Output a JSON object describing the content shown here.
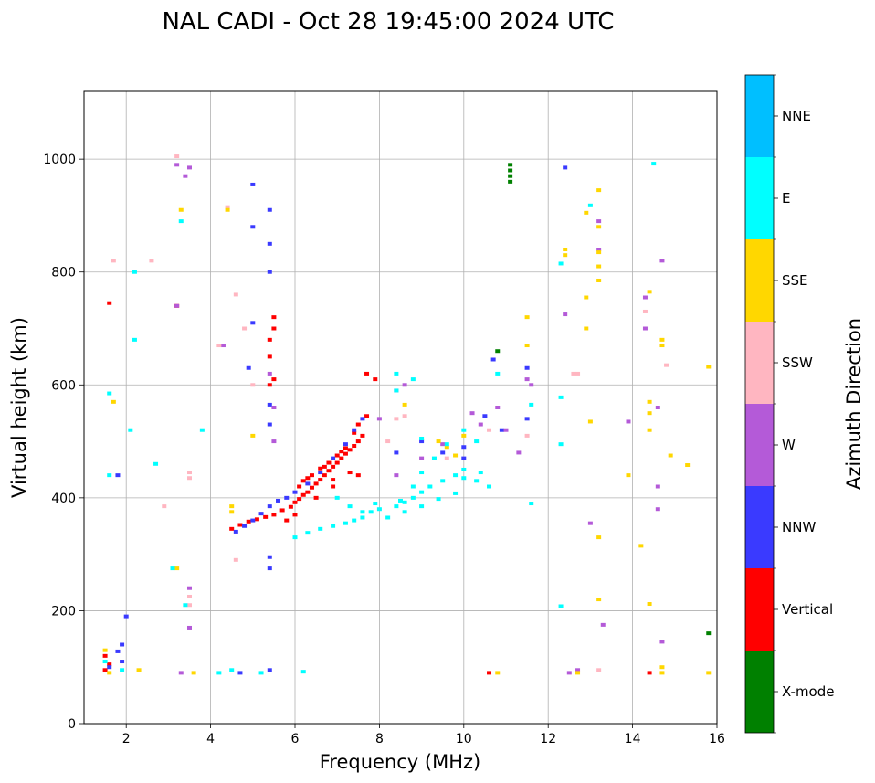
{
  "chart_data": {
    "type": "scatter",
    "title": "NAL CADI - Oct 28 19:45:00 2024 UTC",
    "xlabel": "Frequency (MHz)",
    "ylabel": "Virtual height (km)",
    "xlim": [
      1,
      16
    ],
    "ylim": [
      0,
      1120
    ],
    "xticks": [
      2,
      4,
      6,
      8,
      10,
      12,
      14,
      16
    ],
    "yticks": [
      0,
      200,
      400,
      600,
      800,
      1000
    ],
    "grid": true,
    "colorbar": {
      "title": "Azimuth Direction",
      "categories": [
        {
          "name": "X-mode",
          "color": "#008000"
        },
        {
          "name": "Vertical",
          "color": "#ff0000"
        },
        {
          "name": "NNW",
          "color": "#3a3aff"
        },
        {
          "name": "W",
          "color": "#b45ad8"
        },
        {
          "name": "SSW",
          "color": "#ffb6c1"
        },
        {
          "name": "SSE",
          "color": "#ffd700"
        },
        {
          "name": "E",
          "color": "#00ffff"
        },
        {
          "name": "NNE",
          "color": "#00bfff"
        }
      ]
    },
    "series": [
      {
        "name": "Vertical",
        "color": "#ff0000",
        "points": [
          [
            4.5,
            345
          ],
          [
            4.7,
            352
          ],
          [
            4.9,
            358
          ],
          [
            5.1,
            362
          ],
          [
            5.3,
            366
          ],
          [
            5.5,
            370
          ],
          [
            5.7,
            378
          ],
          [
            5.9,
            384
          ],
          [
            6.0,
            392
          ],
          [
            6.1,
            398
          ],
          [
            6.2,
            405
          ],
          [
            6.3,
            410
          ],
          [
            6.4,
            418
          ],
          [
            6.5,
            425
          ],
          [
            6.6,
            432
          ],
          [
            6.7,
            440
          ],
          [
            6.8,
            448
          ],
          [
            6.9,
            455
          ],
          [
            7.0,
            462
          ],
          [
            7.1,
            470
          ],
          [
            7.2,
            478
          ],
          [
            7.3,
            485
          ],
          [
            7.4,
            492
          ],
          [
            7.5,
            500
          ],
          [
            7.6,
            510
          ],
          [
            6.2,
            430
          ],
          [
            6.4,
            440
          ],
          [
            6.6,
            452
          ],
          [
            6.8,
            462
          ],
          [
            7.0,
            475
          ],
          [
            7.2,
            488
          ],
          [
            6.5,
            400
          ],
          [
            6.9,
            420
          ],
          [
            7.3,
            445
          ],
          [
            6.1,
            420
          ],
          [
            6.3,
            435
          ],
          [
            6.7,
            455
          ],
          [
            7.1,
            482
          ],
          [
            7.5,
            530
          ],
          [
            7.7,
            545
          ],
          [
            7.7,
            620
          ],
          [
            7.9,
            610
          ],
          [
            5.4,
            600
          ],
          [
            5.5,
            610
          ],
          [
            5.5,
            700
          ],
          [
            5.5,
            720
          ],
          [
            5.4,
            650
          ],
          [
            5.4,
            680
          ],
          [
            1.6,
            745
          ],
          [
            3.2,
            740
          ],
          [
            1.5,
            120
          ],
          [
            1.6,
            105
          ],
          [
            1.5,
            95
          ],
          [
            10.6,
            90
          ],
          [
            14.4,
            90
          ],
          [
            7.5,
            440
          ],
          [
            6.0,
            370
          ],
          [
            5.8,
            360
          ],
          [
            6.9,
            432
          ],
          [
            7.4,
            515
          ]
        ]
      },
      {
        "name": "NNW",
        "color": "#3a3aff",
        "points": [
          [
            4.6,
            340
          ],
          [
            4.8,
            350
          ],
          [
            5.0,
            360
          ],
          [
            5.2,
            372
          ],
          [
            5.4,
            385
          ],
          [
            5.6,
            395
          ],
          [
            5.8,
            400
          ],
          [
            6.0,
            410
          ],
          [
            6.3,
            425
          ],
          [
            6.6,
            445
          ],
          [
            6.9,
            470
          ],
          [
            7.2,
            495
          ],
          [
            7.4,
            520
          ],
          [
            7.6,
            540
          ],
          [
            5.4,
            295
          ],
          [
            5.4,
            275
          ],
          [
            5.0,
            955
          ],
          [
            5.0,
            880
          ],
          [
            5.4,
            910
          ],
          [
            5.4,
            850
          ],
          [
            5.4,
            800
          ],
          [
            5.0,
            710
          ],
          [
            4.9,
            630
          ],
          [
            5.4,
            565
          ],
          [
            5.4,
            530
          ],
          [
            1.9,
            140
          ],
          [
            1.8,
            128
          ],
          [
            1.9,
            110
          ],
          [
            1.6,
            100
          ],
          [
            2.0,
            190
          ],
          [
            10.5,
            545
          ],
          [
            10.9,
            520
          ],
          [
            11.5,
            540
          ],
          [
            11.5,
            630
          ],
          [
            12.4,
            985
          ],
          [
            10.7,
            645
          ],
          [
            8.4,
            480
          ],
          [
            9.0,
            500
          ],
          [
            9.5,
            480
          ],
          [
            10.0,
            490
          ],
          [
            10.0,
            470
          ],
          [
            5.4,
            95
          ],
          [
            4.7,
            90
          ],
          [
            1.8,
            440
          ]
        ]
      },
      {
        "name": "W",
        "color": "#b45ad8",
        "points": [
          [
            3.2,
            990
          ],
          [
            3.5,
            985
          ],
          [
            3.4,
            970
          ],
          [
            3.2,
            740
          ],
          [
            4.3,
            670
          ],
          [
            5.4,
            620
          ],
          [
            5.5,
            560
          ],
          [
            5.5,
            500
          ],
          [
            8.0,
            540
          ],
          [
            8.4,
            590
          ],
          [
            8.6,
            600
          ],
          [
            9.5,
            495
          ],
          [
            10.2,
            550
          ],
          [
            10.4,
            530
          ],
          [
            10.8,
            560
          ],
          [
            11.0,
            520
          ],
          [
            11.3,
            480
          ],
          [
            11.5,
            610
          ],
          [
            12.4,
            725
          ],
          [
            13.2,
            890
          ],
          [
            13.2,
            840
          ],
          [
            14.3,
            755
          ],
          [
            14.3,
            700
          ],
          [
            14.6,
            560
          ],
          [
            14.6,
            420
          ],
          [
            14.6,
            380
          ],
          [
            14.7,
            145
          ],
          [
            13.3,
            175
          ],
          [
            12.7,
            95
          ],
          [
            13.0,
            355
          ],
          [
            13.9,
            535
          ],
          [
            8.4,
            440
          ],
          [
            9.0,
            470
          ],
          [
            3.5,
            240
          ],
          [
            3.5,
            170
          ],
          [
            3.3,
            90
          ],
          [
            11.6,
            600
          ],
          [
            14.7,
            820
          ],
          [
            12.5,
            90
          ]
        ]
      },
      {
        "name": "SSW",
        "color": "#ffb6c1",
        "points": [
          [
            2.6,
            820
          ],
          [
            3.2,
            1005
          ],
          [
            3.5,
            445
          ],
          [
            3.5,
            435
          ],
          [
            4.2,
            670
          ],
          [
            4.4,
            915
          ],
          [
            4.6,
            760
          ],
          [
            4.8,
            700
          ],
          [
            5.0,
            600
          ],
          [
            8.4,
            540
          ],
          [
            8.6,
            545
          ],
          [
            12.7,
            620
          ],
          [
            12.6,
            620
          ],
          [
            13.2,
            95
          ],
          [
            14.8,
            635
          ],
          [
            3.5,
            225
          ],
          [
            3.5,
            210
          ],
          [
            2.9,
            385
          ],
          [
            1.7,
            820
          ],
          [
            8.2,
            500
          ],
          [
            9.6,
            470
          ],
          [
            10.6,
            520
          ],
          [
            11.5,
            510
          ],
          [
            14.3,
            730
          ],
          [
            4.6,
            290
          ]
        ]
      },
      {
        "name": "SSE",
        "color": "#ffd700",
        "points": [
          [
            1.7,
            570
          ],
          [
            3.3,
            910
          ],
          [
            4.5,
            385
          ],
          [
            4.5,
            375
          ],
          [
            4.4,
            910
          ],
          [
            5.0,
            510
          ],
          [
            8.6,
            565
          ],
          [
            9.4,
            500
          ],
          [
            9.6,
            490
          ],
          [
            10.0,
            510
          ],
          [
            10.8,
            90
          ],
          [
            11.5,
            720
          ],
          [
            11.5,
            670
          ],
          [
            12.4,
            840
          ],
          [
            12.4,
            830
          ],
          [
            12.9,
            755
          ],
          [
            12.9,
            700
          ],
          [
            12.9,
            905
          ],
          [
            13.2,
            945
          ],
          [
            13.2,
            880
          ],
          [
            13.2,
            810
          ],
          [
            13.2,
            785
          ],
          [
            13.0,
            535
          ],
          [
            13.2,
            330
          ],
          [
            13.2,
            220
          ],
          [
            13.9,
            440
          ],
          [
            14.2,
            315
          ],
          [
            14.4,
            570
          ],
          [
            14.4,
            550
          ],
          [
            14.4,
            520
          ],
          [
            14.4,
            765
          ],
          [
            14.7,
            680
          ],
          [
            14.7,
            670
          ],
          [
            14.9,
            475
          ],
          [
            15.3,
            458
          ],
          [
            15.8,
            632
          ],
          [
            14.4,
            212
          ],
          [
            14.7,
            100
          ],
          [
            14.7,
            90
          ],
          [
            12.7,
            90
          ],
          [
            15.8,
            90
          ],
          [
            3.6,
            90
          ],
          [
            1.5,
            130
          ],
          [
            1.6,
            90
          ],
          [
            2.3,
            95
          ],
          [
            3.2,
            275
          ],
          [
            13.2,
            835
          ],
          [
            9.8,
            475
          ]
        ]
      },
      {
        "name": "E",
        "color": "#00ffff",
        "points": [
          [
            6.0,
            330
          ],
          [
            6.3,
            338
          ],
          [
            6.6,
            345
          ],
          [
            6.9,
            350
          ],
          [
            7.2,
            355
          ],
          [
            7.4,
            360
          ],
          [
            7.6,
            365
          ],
          [
            7.8,
            375
          ],
          [
            8.0,
            380
          ],
          [
            8.4,
            385
          ],
          [
            8.6,
            392
          ],
          [
            8.8,
            400
          ],
          [
            9.0,
            410
          ],
          [
            9.2,
            420
          ],
          [
            9.5,
            430
          ],
          [
            9.8,
            440
          ],
          [
            10.0,
            450
          ],
          [
            10.3,
            430
          ],
          [
            10.6,
            420
          ],
          [
            7.0,
            400
          ],
          [
            7.3,
            385
          ],
          [
            7.6,
            375
          ],
          [
            7.9,
            390
          ],
          [
            8.5,
            395
          ],
          [
            8.8,
            420
          ],
          [
            9.0,
            445
          ],
          [
            9.3,
            470
          ],
          [
            9.6,
            495
          ],
          [
            10.0,
            520
          ],
          [
            10.3,
            500
          ],
          [
            8.2,
            365
          ],
          [
            8.6,
            375
          ],
          [
            9.0,
            385
          ],
          [
            9.4,
            398
          ],
          [
            9.8,
            408
          ],
          [
            10.0,
            435
          ],
          [
            10.4,
            445
          ],
          [
            12.3,
            815
          ],
          [
            12.3,
            578
          ],
          [
            12.3,
            495
          ],
          [
            12.3,
            208
          ],
          [
            13.0,
            918
          ],
          [
            11.6,
            565
          ],
          [
            14.5,
            992
          ],
          [
            3.3,
            890
          ],
          [
            3.4,
            210
          ],
          [
            2.2,
            800
          ],
          [
            2.2,
            680
          ],
          [
            2.1,
            520
          ],
          [
            3.8,
            520
          ],
          [
            1.6,
            585
          ],
          [
            1.6,
            440
          ],
          [
            2.7,
            460
          ],
          [
            3.1,
            275
          ],
          [
            4.2,
            90
          ],
          [
            4.5,
            95
          ],
          [
            6.2,
            92
          ],
          [
            9.0,
            505
          ],
          [
            8.4,
            620
          ],
          [
            8.8,
            610
          ],
          [
            11.6,
            390
          ],
          [
            5.2,
            90
          ],
          [
            1.9,
            95
          ],
          [
            1.5,
            110
          ],
          [
            10.8,
            620
          ],
          [
            8.4,
            590
          ]
        ]
      },
      {
        "name": "X-mode",
        "color": "#008000",
        "points": [
          [
            11.1,
            990
          ],
          [
            11.1,
            980
          ],
          [
            11.1,
            970
          ],
          [
            11.1,
            960
          ],
          [
            10.8,
            660
          ],
          [
            15.8,
            160
          ]
        ]
      }
    ]
  }
}
